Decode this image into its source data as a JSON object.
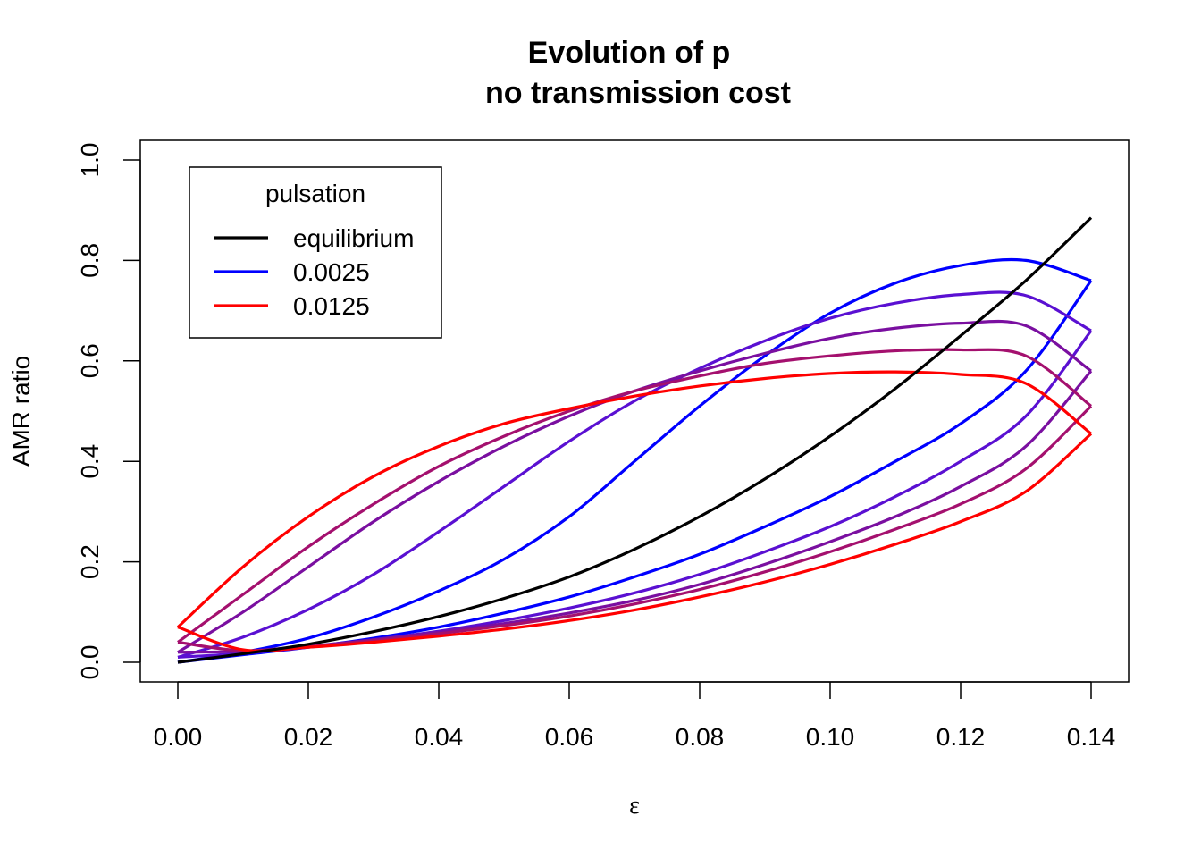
{
  "chart_data": {
    "type": "line",
    "title": [
      "Evolution of p",
      "no transmission cost"
    ],
    "xlabel": "ε",
    "ylabel": "AMR ratio",
    "xlim": [
      0.0,
      0.14
    ],
    "ylim": [
      0.0,
      1.0
    ],
    "x_ticks": [
      "0.00",
      "0.02",
      "0.04",
      "0.06",
      "0.08",
      "0.10",
      "0.12",
      "0.14"
    ],
    "y_ticks": [
      "0.0",
      "0.2",
      "0.4",
      "0.6",
      "0.8",
      "1.0"
    ],
    "legend": {
      "title": "pulsation",
      "placement": "top-left",
      "entries": [
        {
          "label": "equilibrium",
          "color": "#000000"
        },
        {
          "label": "0.0025",
          "color": "#0000FF"
        },
        {
          "label": "0.0125",
          "color": "#FF0000"
        }
      ]
    },
    "series": [
      {
        "name": "equilibrium",
        "color": "#000000",
        "kind": "curve",
        "x": [
          0.0,
          0.01,
          0.02,
          0.03,
          0.04,
          0.05,
          0.06,
          0.07,
          0.08,
          0.09,
          0.1,
          0.11,
          0.12,
          0.13,
          0.14
        ],
        "y": [
          0.0,
          0.017,
          0.036,
          0.061,
          0.091,
          0.127,
          0.17,
          0.225,
          0.29,
          0.365,
          0.45,
          0.545,
          0.65,
          0.76,
          0.885
        ]
      },
      {
        "name": "0.0025",
        "color": "#0000FF",
        "kind": "loop",
        "upper": {
          "x": [
            0.0,
            0.01,
            0.02,
            0.03,
            0.04,
            0.05,
            0.06,
            0.07,
            0.08,
            0.09,
            0.1,
            0.11,
            0.12,
            0.13,
            0.14
          ],
          "y": [
            0.0,
            0.02,
            0.048,
            0.09,
            0.142,
            0.205,
            0.29,
            0.4,
            0.51,
            0.61,
            0.695,
            0.755,
            0.79,
            0.8,
            0.76
          ]
        },
        "lower": {
          "x": [
            0.0,
            0.01,
            0.02,
            0.03,
            0.04,
            0.05,
            0.06,
            0.07,
            0.08,
            0.09,
            0.1,
            0.11,
            0.12,
            0.13,
            0.14
          ],
          "y": [
            0.0,
            0.015,
            0.03,
            0.048,
            0.07,
            0.098,
            0.13,
            0.17,
            0.215,
            0.27,
            0.33,
            0.4,
            0.475,
            0.58,
            0.76
          ]
        }
      },
      {
        "name": "",
        "color": "#5A10D2",
        "kind": "loop",
        "upper": {
          "x": [
            0.0,
            0.01,
            0.02,
            0.03,
            0.04,
            0.05,
            0.06,
            0.07,
            0.08,
            0.09,
            0.1,
            0.11,
            0.12,
            0.13,
            0.14
          ],
          "y": [
            0.01,
            0.05,
            0.105,
            0.175,
            0.26,
            0.35,
            0.44,
            0.52,
            0.585,
            0.64,
            0.685,
            0.715,
            0.732,
            0.73,
            0.66
          ]
        },
        "lower": {
          "x": [
            0.0,
            0.01,
            0.02,
            0.03,
            0.04,
            0.05,
            0.06,
            0.07,
            0.08,
            0.09,
            0.1,
            0.11,
            0.12,
            0.13,
            0.14
          ],
          "y": [
            0.01,
            0.018,
            0.03,
            0.045,
            0.062,
            0.083,
            0.108,
            0.138,
            0.175,
            0.22,
            0.27,
            0.33,
            0.4,
            0.49,
            0.66
          ]
        }
      },
      {
        "name": "",
        "color": "#7A0FA0",
        "kind": "loop",
        "upper": {
          "x": [
            0.0,
            0.01,
            0.02,
            0.03,
            0.04,
            0.05,
            0.06,
            0.07,
            0.08,
            0.09,
            0.1,
            0.11,
            0.12,
            0.13,
            0.14
          ],
          "y": [
            0.02,
            0.1,
            0.19,
            0.28,
            0.36,
            0.43,
            0.49,
            0.54,
            0.58,
            0.615,
            0.645,
            0.665,
            0.675,
            0.67,
            0.58
          ]
        },
        "lower": {
          "x": [
            0.0,
            0.01,
            0.02,
            0.03,
            0.04,
            0.05,
            0.06,
            0.07,
            0.08,
            0.09,
            0.1,
            0.11,
            0.12,
            0.13,
            0.14
          ],
          "y": [
            0.02,
            0.022,
            0.032,
            0.045,
            0.06,
            0.077,
            0.098,
            0.123,
            0.155,
            0.195,
            0.24,
            0.29,
            0.35,
            0.43,
            0.58
          ]
        }
      },
      {
        "name": "",
        "color": "#A4106E",
        "kind": "loop",
        "upper": {
          "x": [
            0.0,
            0.01,
            0.02,
            0.03,
            0.04,
            0.05,
            0.06,
            0.07,
            0.08,
            0.09,
            0.1,
            0.11,
            0.12,
            0.13,
            0.14
          ],
          "y": [
            0.04,
            0.135,
            0.23,
            0.315,
            0.39,
            0.45,
            0.5,
            0.54,
            0.57,
            0.595,
            0.61,
            0.62,
            0.622,
            0.61,
            0.51
          ]
        },
        "lower": {
          "x": [
            0.0,
            0.01,
            0.02,
            0.03,
            0.04,
            0.05,
            0.06,
            0.07,
            0.08,
            0.09,
            0.1,
            0.11,
            0.12,
            0.13,
            0.14
          ],
          "y": [
            0.04,
            0.023,
            0.032,
            0.043,
            0.057,
            0.073,
            0.092,
            0.116,
            0.145,
            0.18,
            0.22,
            0.265,
            0.315,
            0.385,
            0.51
          ]
        }
      },
      {
        "name": "0.0125",
        "color": "#FF0000",
        "kind": "loop",
        "upper": {
          "x": [
            0.0,
            0.01,
            0.02,
            0.03,
            0.04,
            0.05,
            0.06,
            0.07,
            0.08,
            0.09,
            0.1,
            0.11,
            0.12,
            0.13,
            0.14
          ],
          "y": [
            0.07,
            0.19,
            0.29,
            0.37,
            0.43,
            0.475,
            0.505,
            0.53,
            0.55,
            0.565,
            0.575,
            0.578,
            0.573,
            0.555,
            0.455
          ]
        },
        "lower": {
          "x": [
            0.0,
            0.01,
            0.02,
            0.03,
            0.04,
            0.05,
            0.06,
            0.07,
            0.08,
            0.09,
            0.1,
            0.11,
            0.12,
            0.13,
            0.14
          ],
          "y": [
            0.07,
            0.025,
            0.03,
            0.04,
            0.052,
            0.066,
            0.083,
            0.104,
            0.13,
            0.16,
            0.195,
            0.235,
            0.28,
            0.34,
            0.455
          ]
        }
      }
    ]
  }
}
